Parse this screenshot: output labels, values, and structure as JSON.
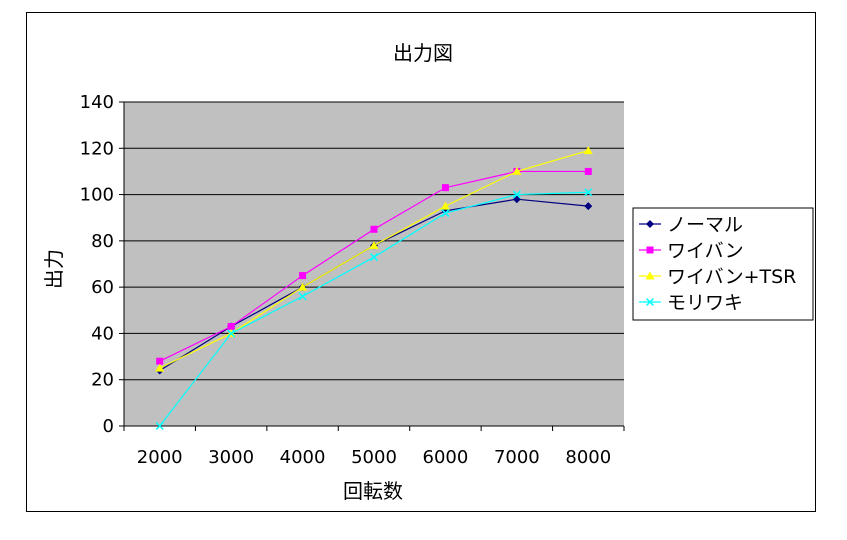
{
  "chart_data": {
    "type": "line",
    "title": "出力図",
    "xlabel": "回転数",
    "ylabel": "出力",
    "x": [
      2000,
      3000,
      4000,
      5000,
      6000,
      7000,
      8000
    ],
    "ylim": [
      0,
      140
    ],
    "yticks": [
      0,
      20,
      40,
      60,
      80,
      100,
      120,
      140
    ],
    "grid": "horizontal",
    "legend_position": "right",
    "plot_background": "#c0c0c0",
    "series": [
      {
        "name": "ノーマル",
        "color": "#000080",
        "marker": "diamond",
        "values": [
          24,
          43,
          60,
          78,
          93,
          98,
          95
        ]
      },
      {
        "name": "ワイバン",
        "color": "#ff00ff",
        "marker": "square",
        "values": [
          28,
          43,
          65,
          85,
          103,
          110,
          110
        ]
      },
      {
        "name": "ワイバン+TSR",
        "color": "#ffff00",
        "marker": "triangle",
        "values": [
          25,
          40,
          60,
          78,
          95,
          110,
          119
        ]
      },
      {
        "name": "モリワキ",
        "color": "#00ffff",
        "marker": "x",
        "values": [
          0,
          40,
          56,
          73,
          92,
          100,
          101
        ]
      }
    ]
  }
}
